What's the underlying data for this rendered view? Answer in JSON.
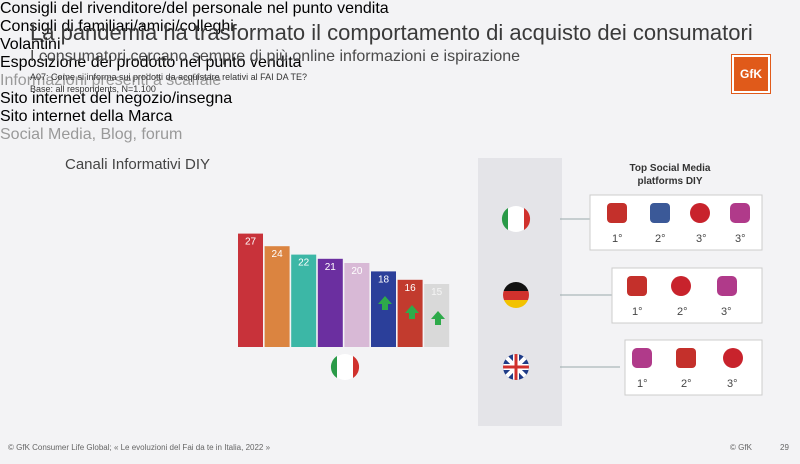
{
  "header": {
    "title": "La pandemia ha trasformato il comportamento di acquisto dei consumatori",
    "subtitle": "I consumatori cercano sempre di più online informazioni e ispirazione",
    "question": "A07: Come si informa sui prodotti da acquistare relativi al FAI DA TE?",
    "base": "Base: all respondents, N=1.100",
    "logo": "GfK"
  },
  "chart_data": {
    "type": "bar",
    "title": "Canali Informativi DIY",
    "categories": [
      "Consigli del rivenditore/del personale nel punto vendita",
      "Consigli di familiari/amici/colleghi",
      "Volantini",
      "Esposizione del prodotto nel punto vendita",
      "Informazioni presenti a scaffale",
      "Sito internet del negozio/insegna",
      "Sito internet della Marca",
      "Social Media, Blog, forum"
    ],
    "values": [
      27,
      24,
      22,
      21,
      20,
      18,
      16,
      15
    ],
    "colors": [
      "#c8323a",
      "#db8440",
      "#3cb7a6",
      "#6b2fa0",
      "#d8b9d6",
      "#2b3f9a",
      "#c23b2e",
      "#d9d9d9"
    ]
  },
  "social": {
    "title": "Top Social Media platforms DIY",
    "rows": [
      {
        "ranks": [
          "1°",
          "2°",
          "3°",
          "3°"
        ]
      },
      {
        "ranks": [
          "1°",
          "2°",
          "3°"
        ]
      },
      {
        "ranks": [
          "1°",
          "2°",
          "3°"
        ]
      }
    ]
  },
  "footer": {
    "source": "© GfK Consumer Life Global; « Le evoluzioni del Fai da te in Italia, 2022 »",
    "copyright": "© GfK",
    "page": "29"
  }
}
